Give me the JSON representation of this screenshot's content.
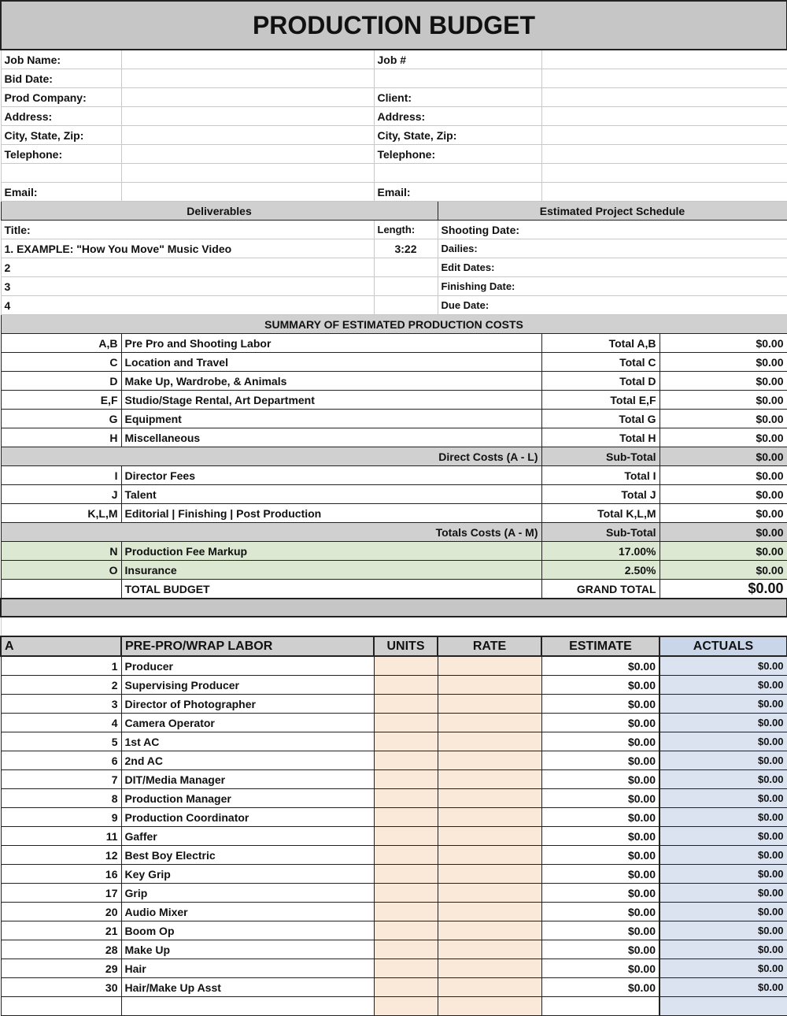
{
  "title": "PRODUCTION BUDGET",
  "info_rows": [
    [
      "Job Name:",
      "Job #"
    ],
    [
      "Bid Date:",
      ""
    ],
    [
      "Prod Company:",
      "Client:"
    ],
    [
      "Address:",
      "Address:"
    ],
    [
      "City, State, Zip:",
      "City, State, Zip:"
    ],
    [
      "Telephone:",
      "Telephone:"
    ],
    [
      "",
      ""
    ],
    [
      "Email:",
      "Email:"
    ]
  ],
  "deliverables": {
    "header": "Deliverables",
    "schedule_header": "Estimated Project Schedule",
    "title_label": "Title:",
    "length_label": "Length:",
    "rows": [
      [
        "1. EXAMPLE: \"How You Move\" Music Video",
        "3:22",
        "Shooting Date:"
      ],
      [
        "2",
        "",
        "Dailies:"
      ],
      [
        "3",
        "",
        "Edit Dates:"
      ],
      [
        "4",
        "",
        "Finishing Date:"
      ],
      [
        "",
        "",
        "Due Date:"
      ]
    ]
  },
  "summary": {
    "header": "SUMMARY OF ESTIMATED PRODUCTION COSTS",
    "rows": [
      {
        "code": "A,B",
        "desc": "Pre Pro and Shooting Labor",
        "label": "Total A,B",
        "value": "$0.00",
        "style": "normal"
      },
      {
        "code": "C",
        "desc": "Location and Travel",
        "label": "Total C",
        "value": "$0.00",
        "style": "normal"
      },
      {
        "code": "D",
        "desc": "Make Up, Wardrobe, & Animals",
        "label": "Total D",
        "value": "$0.00",
        "style": "normal"
      },
      {
        "code": "E,F",
        "desc": "Studio/Stage Rental, Art Department",
        "label": "Total E,F",
        "value": "$0.00",
        "style": "normal"
      },
      {
        "code": "G",
        "desc": "Equipment",
        "label": "Total G",
        "value": "$0.00",
        "style": "normal"
      },
      {
        "code": "H",
        "desc": "Miscellaneous",
        "label": "Total H",
        "value": "$0.00",
        "style": "normal"
      },
      {
        "code": "",
        "desc": "Direct Costs (A - L)",
        "label": "Sub-Total",
        "value": "$0.00",
        "style": "subtotal"
      },
      {
        "code": "I",
        "desc": "Director Fees",
        "label": "Total I",
        "value": "$0.00",
        "style": "normal"
      },
      {
        "code": "J",
        "desc": "Talent",
        "label": "Total J",
        "value": "$0.00",
        "style": "normal"
      },
      {
        "code": "K,L,M",
        "desc": "Editorial | Finishing | Post Production",
        "label": "Total K,L,M",
        "value": "$0.00",
        "style": "normal"
      },
      {
        "code": "",
        "desc": "Totals Costs (A - M)",
        "label": "Sub-Total",
        "value": "$0.00",
        "style": "subtotal"
      },
      {
        "code": "N",
        "desc": "Production Fee Markup",
        "label": "17.00%",
        "value": "$0.00",
        "style": "green"
      },
      {
        "code": "O",
        "desc": "Insurance",
        "label": "2.50%",
        "value": "$0.00",
        "style": "green"
      },
      {
        "code": "",
        "desc": "TOTAL BUDGET",
        "label": "GRAND TOTAL",
        "value": "$0.00",
        "style": "grand"
      }
    ]
  },
  "labor": {
    "headers": [
      "A",
      "PRE-PRO/WRAP LABOR",
      "UNITS",
      "RATE",
      "ESTIMATE",
      "ACTUALS"
    ],
    "rows": [
      [
        "1",
        "Producer"
      ],
      [
        "2",
        "Supervising Producer"
      ],
      [
        "3",
        "Director of Photographer"
      ],
      [
        "4",
        "Camera Operator"
      ],
      [
        "5",
        "1st AC"
      ],
      [
        "6",
        "2nd AC"
      ],
      [
        "7",
        "DIT/Media Manager"
      ],
      [
        "8",
        "Production Manager"
      ],
      [
        "9",
        "Production Coordinator"
      ],
      [
        "11",
        "Gaffer"
      ],
      [
        "12",
        "Best Boy Electric"
      ],
      [
        "16",
        "Key Grip"
      ],
      [
        "17",
        "Grip"
      ],
      [
        "20",
        "Audio Mixer"
      ],
      [
        "21",
        "Boom Op"
      ],
      [
        "28",
        "Make Up"
      ],
      [
        "29",
        "Hair"
      ],
      [
        "30",
        "Hair/Make Up Asst"
      ],
      [
        "",
        ""
      ]
    ],
    "estimate": "$0.00",
    "actual": "$0.00"
  },
  "colors": {
    "header_gray": "#c6c6c6",
    "markup_green": "#dde8d3",
    "units_peach": "#fae8d8",
    "actuals_blue": "#dbe3f0"
  }
}
